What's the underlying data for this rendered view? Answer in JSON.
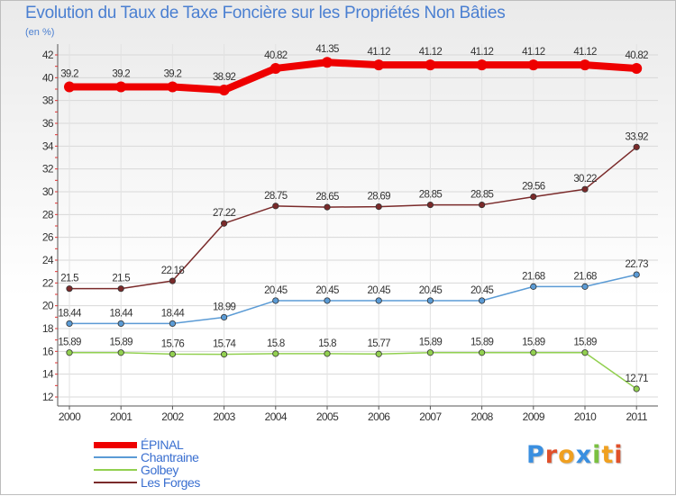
{
  "header": {
    "title": "Evolution du Taux de Taxe Foncière sur les Propriétés Non Bâties",
    "unit": "(en %)"
  },
  "logo": {
    "text": "Proxiti",
    "colors": [
      "#3a8fe0",
      "#e0502a",
      "#f0a020",
      "#3a8fe0",
      "#7ac040",
      "#f0a020",
      "#e0502a"
    ]
  },
  "chart_data": {
    "type": "line",
    "title": "Evolution du Taux de Taxe Foncière sur les Propriétés Non Bâties",
    "ylabel": "(en %)",
    "xlabel": "",
    "ylim": [
      12,
      42
    ],
    "yticks": [
      12,
      14,
      16,
      18,
      20,
      22,
      24,
      26,
      28,
      30,
      32,
      34,
      36,
      38,
      40,
      42
    ],
    "categories": [
      "2000",
      "2001",
      "2002",
      "2003",
      "2004",
      "2005",
      "2006",
      "2007",
      "2008",
      "2009",
      "2010",
      "2011"
    ],
    "grid": true,
    "legend": "bottom-left",
    "series": [
      {
        "name": "ÉPINAL",
        "color": "#ee0000",
        "values": [
          39.2,
          39.2,
          39.2,
          38.92,
          40.82,
          41.35,
          41.12,
          41.12,
          41.12,
          41.12,
          41.12,
          40.82
        ],
        "labels": [
          "39.2",
          "39.2",
          "39.2",
          "38.92",
          "40.82",
          "41.35",
          "41.12",
          "41.12",
          "41.12",
          "41.12",
          "41.12",
          "40.82"
        ]
      },
      {
        "name": "Chantraine",
        "color": "#5b9bd5",
        "values": [
          18.44,
          18.44,
          18.44,
          18.99,
          20.45,
          20.45,
          20.45,
          20.45,
          20.45,
          21.68,
          21.68,
          22.73
        ],
        "labels": [
          "18.44",
          "18.44",
          "18.44",
          "18.99",
          "20.45",
          "20.45",
          "20.45",
          "20.45",
          "20.45",
          "21.68",
          "21.68",
          "22.73"
        ]
      },
      {
        "name": "Golbey",
        "color": "#92d050",
        "values": [
          15.89,
          15.89,
          15.76,
          15.74,
          15.8,
          15.8,
          15.77,
          15.89,
          15.89,
          15.89,
          15.89,
          12.71
        ],
        "labels": [
          "15.89",
          "15.89",
          "15.76",
          "15.74",
          "15.8",
          "15.8",
          "15.77",
          "15.89",
          "15.89",
          "15.89",
          "15.89",
          "12.71"
        ]
      },
      {
        "name": "Les Forges",
        "color": "#7a2a2a",
        "values": [
          21.5,
          21.5,
          22.18,
          27.22,
          28.75,
          28.65,
          28.69,
          28.85,
          28.85,
          29.56,
          30.22,
          33.92
        ],
        "labels": [
          "21.5",
          "21.5",
          "22.18",
          "27.22",
          "28.75",
          "28.65",
          "28.69",
          "28.85",
          "28.85",
          "29.56",
          "30.22",
          "33.92"
        ]
      }
    ]
  }
}
